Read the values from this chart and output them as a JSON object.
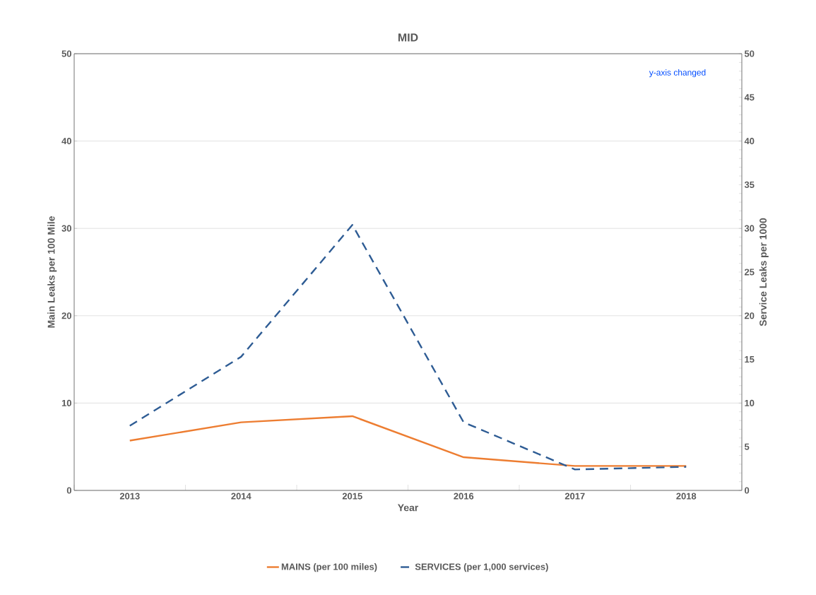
{
  "chart_data": {
    "type": "line",
    "title": "MID",
    "xlabel": "Year",
    "ylabel": "Main Leaks per 100 Mile",
    "y2label": "Service Leaks per 1000",
    "categories": [
      "2013",
      "2014",
      "2015",
      "2016",
      "2017",
      "2018"
    ],
    "series": [
      {
        "name": "MAINS (per 100 miles)",
        "color": "#ed7d31",
        "line_style": "solid",
        "values": [
          5.7,
          7.8,
          8.5,
          3.8,
          2.8,
          2.8
        ]
      },
      {
        "name": "SERVICES (per 1,000 services)",
        "color": "#2e5c94",
        "line_style": "dashed",
        "axis": "y2",
        "values": [
          7.4,
          15.3,
          30.4,
          7.8,
          2.4,
          2.7
        ]
      }
    ],
    "ylim": [
      0,
      50
    ],
    "yticks": [
      0,
      10,
      20,
      30,
      40,
      50
    ],
    "y2lim": [
      0,
      50
    ],
    "y2ticks": [
      0,
      5,
      10,
      15,
      20,
      25,
      30,
      35,
      40,
      45,
      50
    ],
    "grid": "y",
    "legend": "bottom",
    "marker": "none",
    "annotations": [
      "y-axis changed"
    ]
  }
}
